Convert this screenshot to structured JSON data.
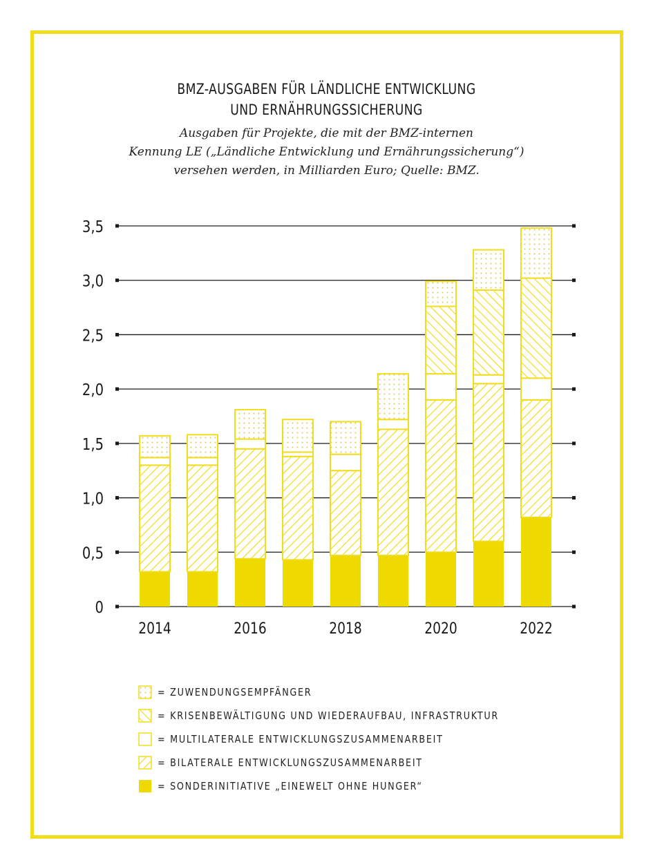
{
  "chart_data": {
    "type": "bar",
    "stacked": true,
    "title": "BMZ-AUSGABEN FÜR LÄNDLICHE ENTWICKLUNG UND ERNÄHRUNGSSICHERUNG",
    "title_lines": [
      "BMZ-AUSGABEN FÜR LÄNDLICHE ENTWICKLUNG",
      "UND ERNÄHRUNGSSICHERUNG"
    ],
    "subtitle_lines": [
      "Ausgaben für Projekte, die mit der BMZ-internen",
      "Kennung LE („Ländliche Entwicklung und Ernährungssicherung“)",
      "versehen werden, in Milliarden Euro; Quelle: BMZ."
    ],
    "xlabel": "",
    "ylabel": "",
    "ylim": [
      0,
      3.5
    ],
    "yticks": [
      "0",
      "0,5",
      "1,0",
      "1,5",
      "2,0",
      "2,5",
      "3,0",
      "3,5"
    ],
    "ytick_values": [
      0,
      0.5,
      1,
      1.5,
      2,
      2.5,
      3,
      3.5
    ],
    "categories": [
      "2014",
      "2015",
      "2016",
      "2017",
      "2018",
      "2019",
      "2020",
      "2021",
      "2022"
    ],
    "xtick_labels": [
      "2014",
      "",
      "2016",
      "",
      "2018",
      "",
      "2020",
      "",
      "2022"
    ],
    "grid": true,
    "legend_position": "bottom",
    "series": [
      {
        "name": "= SONDERINITIATIVE „EINEWELT OHNE HUNGER“",
        "pattern": "solid",
        "values": [
          0.32,
          0.32,
          0.44,
          0.43,
          0.47,
          0.47,
          0.5,
          0.6,
          0.82
        ]
      },
      {
        "name": "= BILATERALE ENTWICKLUNGSZUSAMMENARBEIT",
        "pattern": "hatch-forward",
        "values": [
          0.98,
          0.98,
          1.01,
          0.95,
          0.78,
          1.16,
          1.4,
          1.45,
          1.08
        ]
      },
      {
        "name": "= MULTILATERALE ENTWICKLUNGSZUSAMMENARBEIT",
        "pattern": "empty",
        "values": [
          0.07,
          0.07,
          0.09,
          0.04,
          0.15,
          0.09,
          0.24,
          0.08,
          0.2
        ]
      },
      {
        "name": "= KRISENBEWÄLTIGUNG UND WIEDERAUFBAU, INFRASTRUKTUR",
        "pattern": "hatch-back",
        "values": [
          0,
          0,
          0,
          0,
          0,
          0,
          0.62,
          0.78,
          0.92
        ]
      },
      {
        "name": "= ZUWENDUNGSEMPFÄNGER",
        "pattern": "dots",
        "values": [
          0.2,
          0.21,
          0.27,
          0.3,
          0.3,
          0.42,
          0.23,
          0.37,
          0.46
        ]
      }
    ],
    "legend_order": [
      4,
      3,
      2,
      1,
      0
    ],
    "colors": {
      "accent": "#f2dd1c",
      "solid": "#eed900",
      "axis": "#1a1a1a"
    }
  }
}
